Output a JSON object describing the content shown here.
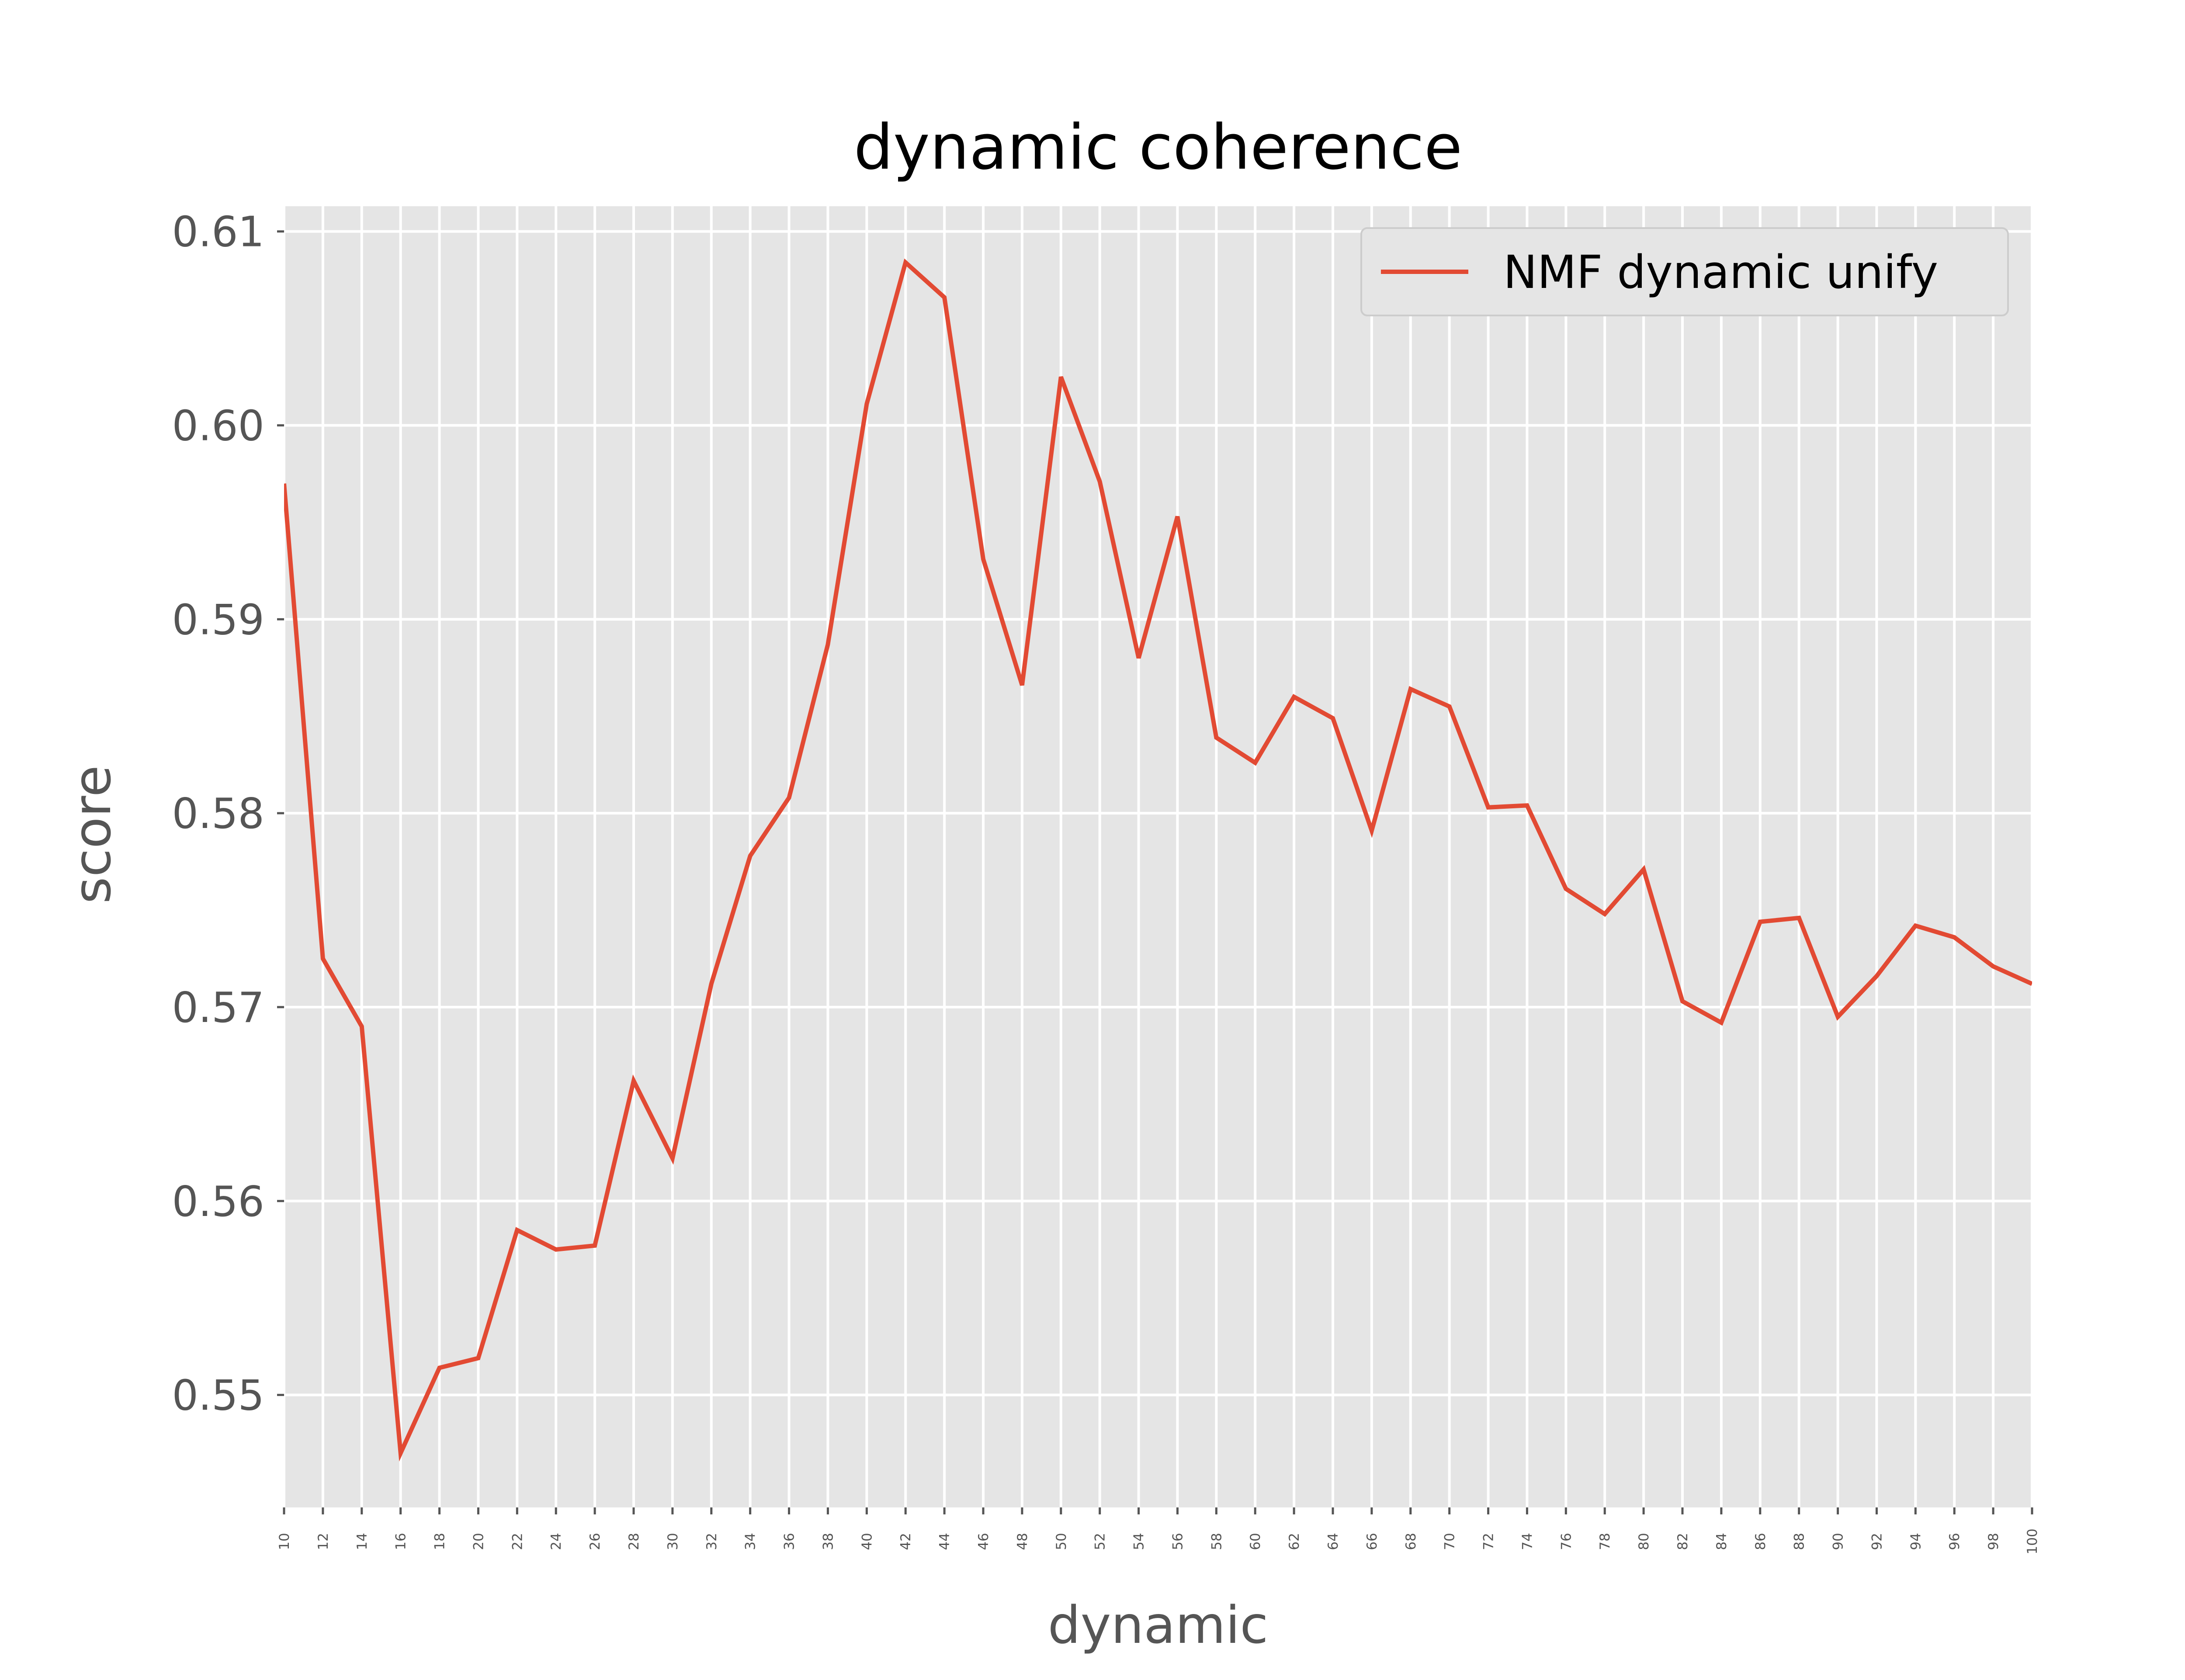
{
  "chart_data": {
    "type": "line",
    "title": "dynamic coherence",
    "xlabel": "dynamic",
    "ylabel": "score",
    "xlim": [
      10,
      100
    ],
    "ylim": [
      0.5442,
      0.6113
    ],
    "grid": true,
    "legend_placement": "top-right",
    "x_ticks": [
      10,
      12,
      14,
      16,
      18,
      20,
      22,
      24,
      26,
      28,
      30,
      32,
      34,
      36,
      38,
      40,
      42,
      44,
      46,
      48,
      50,
      52,
      54,
      56,
      58,
      60,
      62,
      64,
      66,
      68,
      70,
      72,
      74,
      76,
      78,
      80,
      82,
      84,
      86,
      88,
      90,
      92,
      94,
      96,
      98,
      100
    ],
    "y_ticks": [
      0.55,
      0.56,
      0.57,
      0.58,
      0.59,
      0.6,
      0.61
    ],
    "y_tick_labels": [
      "0.55",
      "0.56",
      "0.57",
      "0.58",
      "0.59",
      "0.60",
      "0.61"
    ],
    "x": [
      10,
      12,
      14,
      16,
      18,
      20,
      22,
      24,
      26,
      28,
      30,
      32,
      34,
      36,
      38,
      40,
      42,
      44,
      46,
      48,
      50,
      52,
      54,
      56,
      58,
      60,
      62,
      64,
      66,
      68,
      70,
      72,
      74,
      76,
      78,
      80,
      82,
      84,
      86,
      88,
      90,
      92,
      94,
      96,
      98,
      100
    ],
    "series": [
      {
        "name": "NMF dynamic unify",
        "color": "#e24a33",
        "values": [
          0.597,
          0.5725,
          0.569,
          0.547,
          0.5514,
          0.5519,
          0.5585,
          0.5575,
          0.5577,
          0.5662,
          0.5622,
          0.5712,
          0.5778,
          0.5808,
          0.5887,
          0.6011,
          0.6084,
          0.6066,
          0.5931,
          0.5866,
          0.6025,
          0.5971,
          0.588,
          0.5953,
          0.5839,
          0.5826,
          0.586,
          0.5849,
          0.5791,
          0.5864,
          0.5855,
          0.5803,
          0.5804,
          0.5761,
          0.5748,
          0.5771,
          0.5703,
          0.5692,
          0.5744,
          0.5746,
          0.5695,
          0.5716,
          0.5742,
          0.5736,
          0.5721,
          0.5712
        ]
      }
    ]
  },
  "colors": {
    "plot_background": "#e5e5e5",
    "grid": "#ffffff",
    "tick": "#555555"
  }
}
